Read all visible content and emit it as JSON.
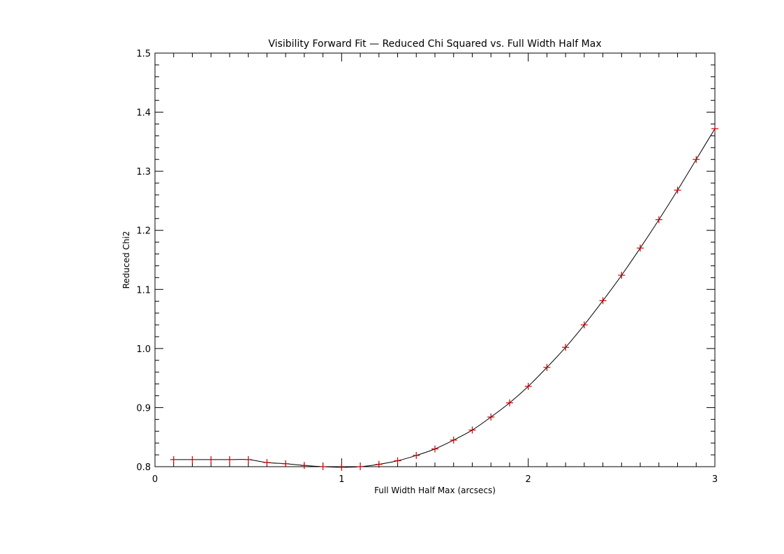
{
  "chart_data": {
    "type": "line",
    "title": "Visibility Forward Fit — Reduced Chi Squared vs. Full Width Half Max",
    "xlabel": "Full Width Half Max (arcsecs)",
    "ylabel": "Reduced Chi2",
    "xlim": [
      0,
      3
    ],
    "ylim": [
      0.8,
      1.5
    ],
    "x_ticks": [
      "0",
      "1",
      "2",
      "3"
    ],
    "y_ticks": [
      "0.8",
      "0.9",
      "1.0",
      "1.1",
      "1.2",
      "1.3",
      "1.4",
      "1.5"
    ],
    "grid": false,
    "series": [
      {
        "line_color": "#000000",
        "marker": "plus",
        "marker_color": "#cc0000",
        "x": [
          0.1,
          0.2,
          0.3,
          0.4,
          0.5,
          0.6,
          0.7,
          0.8,
          0.9,
          1.0,
          1.1,
          1.2,
          1.3,
          1.4,
          1.5,
          1.6,
          1.7,
          1.8,
          1.9,
          2.0,
          2.1,
          2.2,
          2.3,
          2.4,
          2.5,
          2.6,
          2.7,
          2.8,
          2.9,
          3.0
        ],
        "y": [
          0.812,
          0.812,
          0.812,
          0.812,
          0.812,
          0.807,
          0.805,
          0.802,
          0.8,
          0.799,
          0.8,
          0.804,
          0.81,
          0.819,
          0.83,
          0.845,
          0.862,
          0.884,
          0.908,
          0.936,
          0.968,
          1.002,
          1.04,
          1.081,
          1.124,
          1.17,
          1.218,
          1.268,
          1.32,
          1.372
        ]
      }
    ]
  }
}
